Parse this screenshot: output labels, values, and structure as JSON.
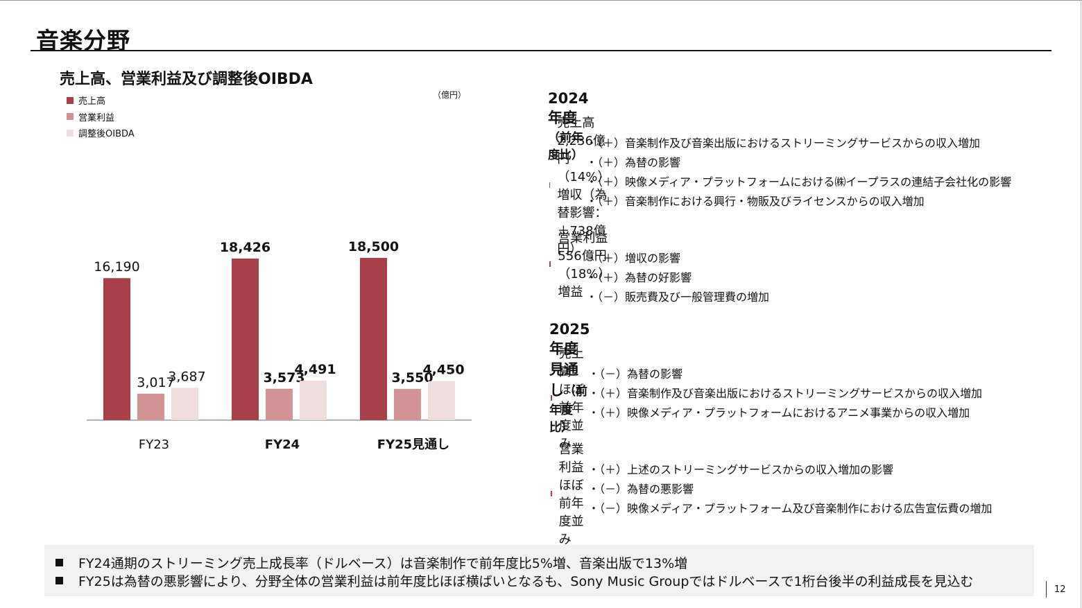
{
  "page": {
    "title": "音楽分野",
    "number": "12"
  },
  "chart_title": "売上高、営業利益及び調整後OIBDA",
  "unit": "（億円）",
  "legend": [
    {
      "label": "売上高",
      "color": "#a8404a"
    },
    {
      "label": "営業利益",
      "color": "#d49394"
    },
    {
      "label": "調整後OIBDA",
      "color": "#f0dddd"
    }
  ],
  "chart_data": {
    "type": "bar",
    "categories": [
      "FY23",
      "FY24",
      "FY25見通し"
    ],
    "series": [
      {
        "name": "売上高",
        "values": [
          16190,
          18426,
          18500
        ]
      },
      {
        "name": "営業利益",
        "values": [
          3017,
          3573,
          3550
        ]
      },
      {
        "name": "調整後OIBDA",
        "values": [
          3687,
          4491,
          4450
        ]
      }
    ],
    "value_labels": [
      [
        "16,190",
        "3,017",
        "3,687"
      ],
      [
        "18,426",
        "3,573",
        "4,491"
      ],
      [
        "18,500",
        "3,550",
        "4,450"
      ]
    ],
    "bold_categories": [
      false,
      true,
      true
    ],
    "ylim": [
      0,
      20000
    ],
    "grid": false,
    "legend_position": "top-left"
  },
  "fy2024": {
    "heading": "2024年度",
    "heading_note": "（前年度比）",
    "sales": {
      "label": "売上高　2,236億円（14%）増収（為替影響：＋738億円）",
      "bullets": [
        "・（＋）音楽制作及び音楽出版におけるストリーミングサービスからの収入増加",
        "・（＋）為替の影響",
        "・（＋）映像メディア・プラットフォームにおける㈱イープラスの連結子会社化の影響",
        "・（＋）音楽制作における興行・物販及びライセンスからの収入増加"
      ]
    },
    "profit": {
      "label": "営業利益　556億円（18%）増益",
      "bullets": [
        "・（＋）増収の影響",
        "・（＋）為替の好影響",
        "・（－）販売費及び一般管理費の増加"
      ]
    }
  },
  "fy2025": {
    "heading": "2025年度見通し",
    "heading_note": "（前年度比）",
    "sales": {
      "label": "売上高　ほぼ前年度並み",
      "bullets": [
        "・（－）為替の影響",
        "・（＋）音楽制作及び音楽出版におけるストリーミングサービスからの収入増加",
        "・（＋）映像メディア・プラットフォームにおけるアニメ事業からの収入増加"
      ]
    },
    "profit": {
      "label": "営業利益　ほぼ前年度並み",
      "bullets": [
        "・（＋）上述のストリーミングサービスからの収入増加の影響",
        "・（－）為替の悪影響",
        "・（－）映像メディア・プラットフォーム及び音楽制作における広告宣伝費の増加"
      ]
    }
  },
  "footer": [
    "FY24通期のストリーミング売上成長率（ドルベース）は音楽制作で前年度比5%増、音楽出版で13%増",
    "FY25は為替の悪影響により、分野全体の営業利益は前年度比ほぼ横ばいとなるも、Sony Music Groupではドルベースで1桁台後半の利益成長を見込む"
  ]
}
